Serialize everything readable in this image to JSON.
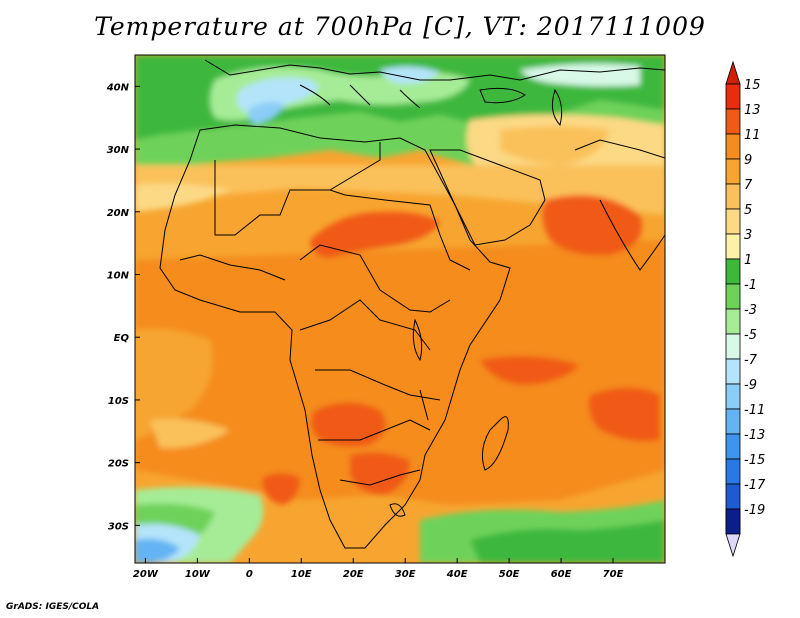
{
  "title": "Temperature at 700hPa [C], VT: 2017111009",
  "credit": "GrADS: IGES/COLA",
  "map": {
    "lon_range": [
      -22,
      80
    ],
    "lat_range": [
      -36,
      45
    ],
    "x_ticks": [
      {
        "lon": -20,
        "label": "20W"
      },
      {
        "lon": -10,
        "label": "10W"
      },
      {
        "lon": 0,
        "label": "0"
      },
      {
        "lon": 10,
        "label": "10E"
      },
      {
        "lon": 20,
        "label": "20E"
      },
      {
        "lon": 30,
        "label": "30E"
      },
      {
        "lon": 40,
        "label": "40E"
      },
      {
        "lon": 50,
        "label": "50E"
      },
      {
        "lon": 60,
        "label": "60E"
      },
      {
        "lon": 70,
        "label": "70E"
      }
    ],
    "y_ticks": [
      {
        "lat": 40,
        "label": "40N"
      },
      {
        "lat": 30,
        "label": "30N"
      },
      {
        "lat": 20,
        "label": "20N"
      },
      {
        "lat": 10,
        "label": "10N"
      },
      {
        "lat": 0,
        "label": "EQ"
      },
      {
        "lat": -10,
        "label": "10S"
      },
      {
        "lat": -20,
        "label": "20S"
      },
      {
        "lat": -30,
        "label": "30S"
      }
    ]
  },
  "colorbar": {
    "levels": [
      {
        "label": "15",
        "color": "#e82c0c"
      },
      {
        "label": "13",
        "color": "#f05a14"
      },
      {
        "label": "11",
        "color": "#f58c1e"
      },
      {
        "label": "9",
        "color": "#f7a530"
      },
      {
        "label": "7",
        "color": "#fac15a"
      },
      {
        "label": "5",
        "color": "#fcd985"
      },
      {
        "label": "3",
        "color": "#fdf0a8"
      },
      {
        "label": "1",
        "color": "#3cb83c"
      },
      {
        "label": "-1",
        "color": "#6ed25a"
      },
      {
        "label": "-3",
        "color": "#a6ec96"
      },
      {
        "label": "-5",
        "color": "#d8f8e8"
      },
      {
        "label": "-7",
        "color": "#b4e4fa"
      },
      {
        "label": "-9",
        "color": "#8ccdf8"
      },
      {
        "label": "-11",
        "color": "#64b4f4"
      },
      {
        "label": "-13",
        "color": "#3c96f0"
      },
      {
        "label": "-15",
        "color": "#2878e6"
      },
      {
        "label": "-17",
        "color": "#1e5ad2"
      },
      {
        "label": "-19",
        "color": "#1432b4"
      }
    ],
    "top_color": "#d22008",
    "bottom_top_color": "#0c1e8c",
    "bottom_color": "#e0d8f8"
  }
}
